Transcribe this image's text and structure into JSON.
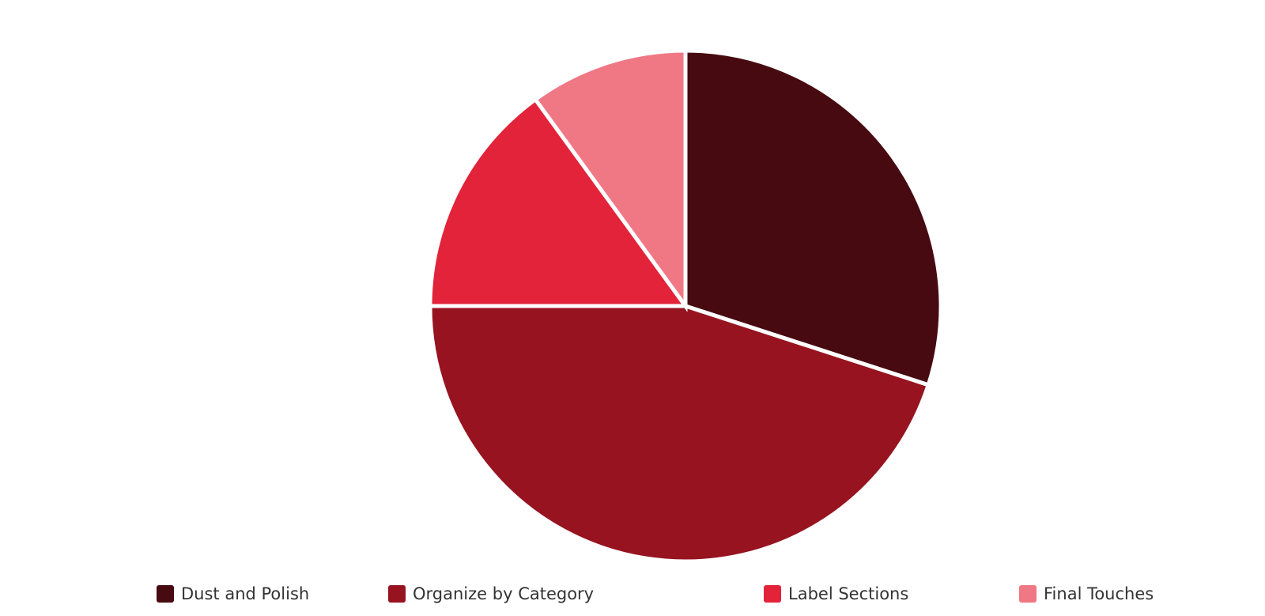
{
  "chart_data": {
    "type": "pie",
    "categories": [
      "Dust and Polish",
      "Organize by Category",
      "Label Sections",
      "Final Touches"
    ],
    "values": [
      30,
      45,
      15,
      10
    ],
    "colors": [
      "#470a10",
      "#971320",
      "#e2233a",
      "#f07784"
    ],
    "legend": "bottom"
  }
}
